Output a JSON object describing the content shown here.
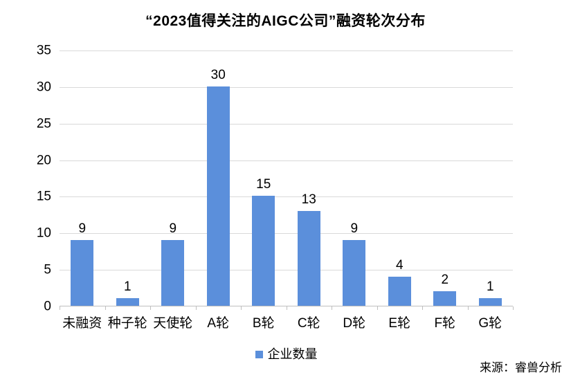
{
  "chart_data": {
    "type": "bar",
    "title": "“2023值得关注的AIGC公司”融资轮次分布",
    "categories": [
      "未融资",
      "种子轮",
      "天使轮",
      "A轮",
      "B轮",
      "C轮",
      "D轮",
      "E轮",
      "F轮",
      "G轮"
    ],
    "values": [
      9,
      1,
      9,
      30,
      15,
      13,
      9,
      4,
      2,
      1
    ],
    "series_name": "企业数量",
    "xlabel": "",
    "ylabel": "",
    "ylim": [
      0,
      35
    ],
    "ytick_step": 5,
    "grid": true,
    "data_labels": true,
    "legend_position": "bottom"
  },
  "footer": {
    "source": "来源：睿兽分析"
  },
  "colors": {
    "bar": "#5B8FDB",
    "gridline": "#D9D9D9",
    "axis": "#BFBFBF",
    "text": "#000000"
  }
}
